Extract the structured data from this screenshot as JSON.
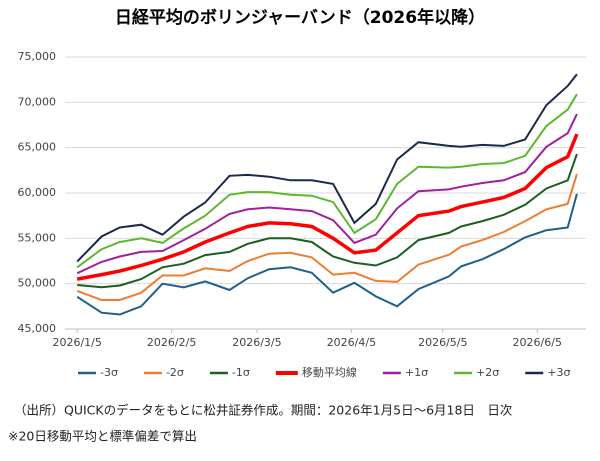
{
  "chart_data": {
    "type": "line",
    "title": "日経平均のボリンジャーバンド（2026年以降）",
    "notes": [
      "（出所）QUICKのデータをもとに松井証券作成。期間：2026年1月5日～6月18日　日次",
      "※20日移動平均と標準偏差で算出"
    ],
    "x": [
      "2026-01-05",
      "2026-01-13",
      "2026-01-19",
      "2026-01-26",
      "2026-02-02",
      "2026-02-09",
      "2026-02-16",
      "2026-02-24",
      "2026-03-02",
      "2026-03-09",
      "2026-03-16",
      "2026-03-23",
      "2026-03-30",
      "2026-04-06",
      "2026-04-13",
      "2026-04-20",
      "2026-04-27",
      "2026-05-07",
      "2026-05-11",
      "2026-05-18",
      "2026-05-25",
      "2026-06-01",
      "2026-06-08",
      "2026-06-15",
      "2026-06-18"
    ],
    "xlim": [
      "2026-01-01",
      "2026-06-21"
    ],
    "xticks": [
      {
        "value": "2026-01-05",
        "label": "2026/1/5"
      },
      {
        "value": "2026-02-05",
        "label": "2026/2/5"
      },
      {
        "value": "2026-03-05",
        "label": "2026/3/5"
      },
      {
        "value": "2026-04-05",
        "label": "2026/4/5"
      },
      {
        "value": "2026-05-05",
        "label": "2026/5/5"
      },
      {
        "value": "2026-06-05",
        "label": "2026/6/5"
      }
    ],
    "ylim": [
      45000,
      75000
    ],
    "yticks": [
      {
        "value": 45000,
        "label": "45,000"
      },
      {
        "value": 50000,
        "label": "50,000"
      },
      {
        "value": 55000,
        "label": "55,000"
      },
      {
        "value": 60000,
        "label": "60,000"
      },
      {
        "value": 65000,
        "label": "65,000"
      },
      {
        "value": 70000,
        "label": "70,000"
      },
      {
        "value": 75000,
        "label": "75,000"
      }
    ],
    "grid": true,
    "legend": "bottom",
    "series": [
      {
        "name": "-3σ",
        "color": "#1f5f8b",
        "values": [
          48550,
          46800,
          46600,
          47500,
          50000,
          49600,
          50250,
          49300,
          50600,
          51600,
          51800,
          51200,
          49000,
          50100,
          48600,
          47500,
          49400,
          50800,
          51900,
          52700,
          53800,
          55100,
          55900,
          56200,
          59900
        ]
      },
      {
        "name": "-2σ",
        "color": "#ed7d31",
        "values": [
          49200,
          48200,
          48200,
          49000,
          50900,
          50900,
          51700,
          51400,
          52500,
          53300,
          53400,
          52900,
          51000,
          51200,
          50300,
          50200,
          52100,
          53200,
          54100,
          54800,
          55700,
          56900,
          58200,
          58800,
          62100
        ]
      },
      {
        "name": "-1σ",
        "color": "#1e5e20",
        "values": [
          49850,
          49600,
          49800,
          50500,
          51800,
          52200,
          53150,
          53500,
          54400,
          55000,
          55000,
          54600,
          53000,
          52300,
          52000,
          52900,
          54800,
          55600,
          56300,
          56900,
          57600,
          58700,
          60500,
          61400,
          64300
        ]
      },
      {
        "name": "移動平均線",
        "color": "#ff0000",
        "values": [
          50500,
          51000,
          51400,
          52000,
          52700,
          53500,
          54600,
          55600,
          56300,
          56700,
          56600,
          56300,
          55000,
          53400,
          53700,
          55600,
          57500,
          58000,
          58500,
          59000,
          59500,
          60500,
          62800,
          64000,
          66500
        ]
      },
      {
        "name": "+1σ",
        "color": "#a020a0",
        "values": [
          51150,
          52400,
          53000,
          53500,
          53600,
          54800,
          56050,
          57700,
          58200,
          58400,
          58200,
          58000,
          57000,
          54500,
          55400,
          58300,
          60200,
          60400,
          60700,
          61100,
          61400,
          62300,
          65100,
          66600,
          68700
        ]
      },
      {
        "name": "+2σ",
        "color": "#5cb82e",
        "values": [
          51800,
          53800,
          54600,
          55000,
          54500,
          56100,
          57500,
          59800,
          60100,
          60100,
          59800,
          59700,
          59000,
          55600,
          57100,
          61000,
          62900,
          62800,
          62900,
          63200,
          63300,
          64100,
          67400,
          69200,
          70900
        ]
      },
      {
        "name": "+3σ",
        "color": "#1b2a4a",
        "values": [
          52450,
          55200,
          56200,
          56500,
          55400,
          57400,
          58950,
          61900,
          62000,
          61800,
          61400,
          61400,
          61000,
          56700,
          58800,
          63700,
          65600,
          65200,
          65100,
          65300,
          65200,
          65900,
          69700,
          71800,
          73100
        ]
      }
    ]
  }
}
